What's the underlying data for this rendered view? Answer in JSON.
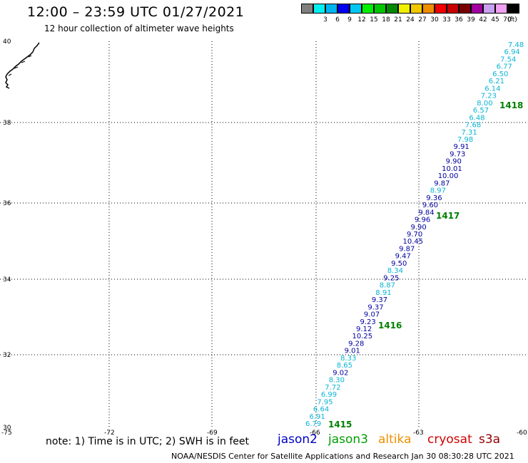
{
  "header": {
    "title": "12:00 – 23:59 UTC 01/27/2021",
    "subtitle": "12 hour collection of altimeter wave heights"
  },
  "legend": {
    "unit": "(ft)",
    "swatches": [
      {
        "label": "",
        "color": "#7f7f7f"
      },
      {
        "label": "3",
        "color": "#00f0f0"
      },
      {
        "label": "6",
        "color": "#00b4f0"
      },
      {
        "label": "9",
        "color": "#0000f0"
      },
      {
        "label": "12",
        "color": "#00c8f0"
      },
      {
        "label": "15",
        "color": "#00f000"
      },
      {
        "label": "18",
        "color": "#00c800"
      },
      {
        "label": "21",
        "color": "#008800"
      },
      {
        "label": "24",
        "color": "#f0f000"
      },
      {
        "label": "27",
        "color": "#f0c800"
      },
      {
        "label": "30",
        "color": "#f08c00"
      },
      {
        "label": "33",
        "color": "#f00000"
      },
      {
        "label": "36",
        "color": "#c80000"
      },
      {
        "label": "39",
        "color": "#780000"
      },
      {
        "label": "42",
        "color": "#a000a0"
      },
      {
        "label": "45",
        "color": "#c8a0f0"
      },
      {
        "label": "70",
        "color": "#f0a0f0"
      },
      {
        "label": "",
        "color": "#000000"
      }
    ]
  },
  "axes": {
    "lat_labels": [
      "40",
      "38",
      "36",
      "34",
      "32",
      "30"
    ],
    "lon_labels": [
      "-75",
      "-72",
      "-69",
      "-66",
      "-63",
      "-60"
    ]
  },
  "colors": {
    "light": "#0ab4d4",
    "dark": "#0000a0",
    "time": "#008000"
  },
  "track": {
    "heights": [
      "7.48",
      "6.94",
      "7.54",
      "6.77",
      "6.50",
      "6.21",
      "6.14",
      "7.23",
      "8.00",
      "6.57",
      "6.48",
      "7.68",
      "7.31",
      "7.98",
      "9.91",
      "9.73",
      "9.90",
      "10.01",
      "10.00",
      "9.87",
      "8.97",
      "9.36",
      "9.60",
      "9.84",
      "9.96",
      "9.90",
      "9.70",
      "10.45",
      "9.87",
      "9.47",
      "9.50",
      "8.34",
      "9.25",
      "8.87",
      "8.91",
      "9.37",
      "9.37",
      "9.07",
      "9.23",
      "9.12",
      "10.25",
      "9.28",
      "9.01",
      "8.33",
      "8.65",
      "9.02",
      "8.30",
      "7.72",
      "6.99",
      "7.95",
      "6.64",
      "6.91",
      "6.79"
    ],
    "shades": [
      "light",
      "light",
      "light",
      "light",
      "light",
      "light",
      "light",
      "light",
      "light",
      "light",
      "light",
      "light",
      "light",
      "light",
      "dark",
      "dark",
      "dark",
      "dark",
      "dark",
      "dark",
      "light",
      "dark",
      "dark",
      "dark",
      "dark",
      "dark",
      "dark",
      "dark",
      "dark",
      "dark",
      "dark",
      "light",
      "dark",
      "light",
      "light",
      "dark",
      "dark",
      "dark",
      "dark",
      "dark",
      "dark",
      "dark",
      "dark",
      "light",
      "light",
      "dark",
      "light",
      "light",
      "light",
      "light",
      "light",
      "light",
      "light"
    ],
    "times": [
      "1418",
      "1417",
      "1416",
      "1415"
    ]
  },
  "footer": {
    "note": "note: 1) Time is in UTC; 2) SWH is in feet",
    "sats": [
      {
        "label": "jason2",
        "color": "#0000c8"
      },
      {
        "label": "jason3",
        "color": "#00a000"
      },
      {
        "label": "altika",
        "color": "#f09000"
      },
      {
        "label": "cryosat",
        "color": "#d00000"
      },
      {
        "label": "s3a",
        "color": "#900000"
      }
    ],
    "credit": "NOAA/NESDIS Center for Satellite Applications and Research    Jan 30 08:30:28 UTC 2021"
  }
}
